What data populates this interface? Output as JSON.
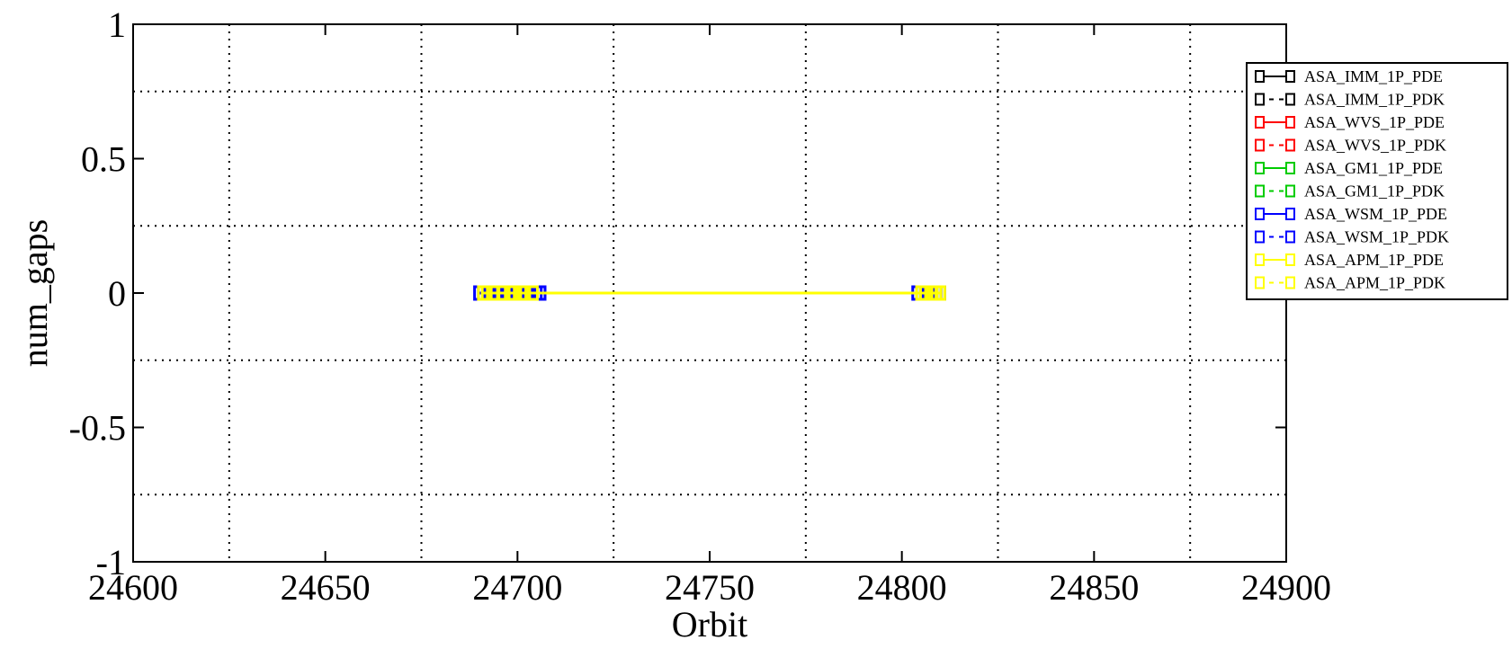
{
  "chart_data": {
    "type": "line",
    "title": "",
    "xlabel": "Orbit",
    "ylabel": "num_gaps",
    "xlim": [
      24600,
      24900
    ],
    "ylim": [
      -1,
      1
    ],
    "x_ticks": [
      24600,
      24650,
      24700,
      24750,
      24800,
      24850,
      24900
    ],
    "x_tick_labels": [
      "24600",
      "24650",
      "24700",
      "24750",
      "24800",
      "24850",
      "24900"
    ],
    "y_ticks": [
      -1,
      -0.5,
      0,
      0.5,
      1
    ],
    "y_tick_labels": [
      "-1",
      "-0.5",
      "0",
      "0.5",
      "1"
    ],
    "grid": true,
    "legend_position": "right",
    "series": [
      {
        "name": "ASA_IMM_1P_PDE",
        "color": "#000000",
        "dash": false,
        "x": [],
        "y": []
      },
      {
        "name": "ASA_IMM_1P_PDK",
        "color": "#000000",
        "dash": true,
        "x": [],
        "y": []
      },
      {
        "name": "ASA_WVS_1P_PDE",
        "color": "#ff0000",
        "dash": false,
        "x": [],
        "y": []
      },
      {
        "name": "ASA_WVS_1P_PDK",
        "color": "#ff0000",
        "dash": true,
        "x": [],
        "y": []
      },
      {
        "name": "ASA_GM1_1P_PDE",
        "color": "#00cc00",
        "dash": false,
        "x": [],
        "y": []
      },
      {
        "name": "ASA_GM1_1P_PDK",
        "color": "#00cc00",
        "dash": true,
        "x": [],
        "y": []
      },
      {
        "name": "ASA_WSM_1P_PDE",
        "color": "#0000ff",
        "dash": false,
        "x": [
          24690,
          24691,
          24693,
          24694,
          24695,
          24696,
          24697,
          24698,
          24699,
          24700,
          24701,
          24702,
          24703,
          24704,
          24705,
          24706,
          24804,
          24805,
          24806,
          24807,
          24808,
          24809,
          24810
        ],
        "y": [
          0,
          0,
          0,
          0,
          0,
          0,
          0,
          0,
          0,
          0,
          0,
          0,
          0,
          0,
          0,
          0,
          0,
          0,
          0,
          0,
          0,
          0,
          0
        ]
      },
      {
        "name": "ASA_WSM_1P_PDK",
        "color": "#0000ff",
        "dash": true,
        "x": [
          24693,
          24695,
          24697,
          24700,
          24703,
          24706,
          24805,
          24807,
          24809
        ],
        "y": [
          0,
          0,
          0,
          0,
          0,
          0,
          0,
          0,
          0
        ]
      },
      {
        "name": "ASA_APM_1P_PDE",
        "color": "#ffff00",
        "dash": false,
        "x": [
          24692,
          24694,
          24696,
          24698,
          24699,
          24701,
          24702,
          24704,
          24805,
          24806,
          24808,
          24810
        ],
        "y": [
          0,
          0,
          0,
          0,
          0,
          0,
          0,
          0,
          0,
          0,
          0,
          0
        ]
      },
      {
        "name": "ASA_APM_1P_PDK",
        "color": "#ffff00",
        "dash": true,
        "x": [
          24691,
          24696,
          24701,
          24806,
          24809
        ],
        "y": [
          0,
          0,
          0,
          0,
          0
        ]
      }
    ]
  }
}
